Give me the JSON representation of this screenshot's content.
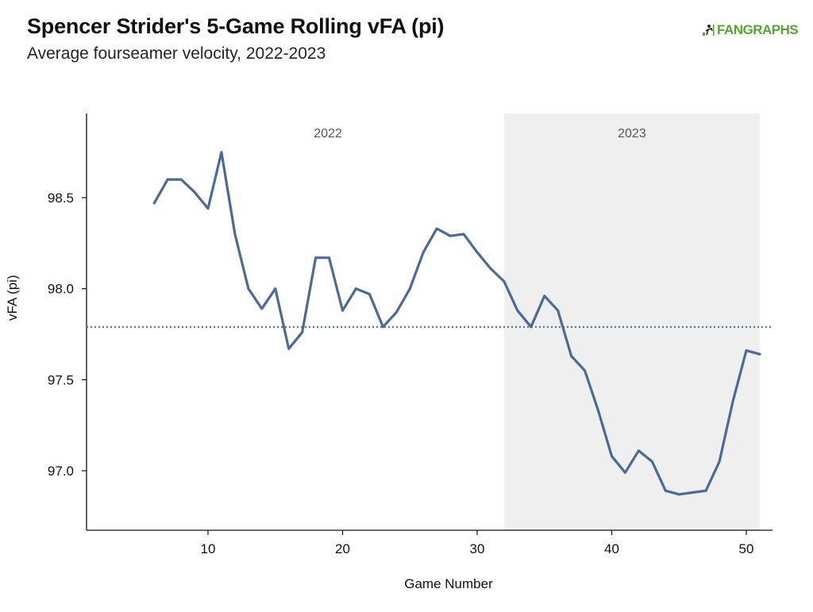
{
  "header": {
    "title": "Spencer Strider's 5-Game Rolling vFA (pi)",
    "subtitle": "Average fourseamer velocity, 2022-2023"
  },
  "logo": {
    "text": "FANGRAPHS",
    "icon": "fangraphs-figure-icon",
    "color": "#55a630"
  },
  "chart_data": {
    "type": "line",
    "title": "Spencer Strider's 5-Game Rolling vFA (pi)",
    "subtitle": "Average fourseamer velocity, 2022-2023",
    "xlabel": "Game Number",
    "ylabel": "vFA (pi)",
    "xlim": [
      1,
      52
    ],
    "ylim": [
      96.75,
      98.97
    ],
    "xticks": [
      10,
      20,
      30,
      40,
      50
    ],
    "yticks": [
      97.0,
      97.5,
      98.0,
      98.5
    ],
    "ytick_labels": [
      "97.0",
      "97.5",
      "98.0",
      "98.5"
    ],
    "grid": false,
    "line_color": "#4a6b96",
    "reference_line": {
      "y": 97.79,
      "style": "dotted",
      "color": "#4a6b96"
    },
    "regions": [
      {
        "label": "2022",
        "x_start": 1,
        "x_end": 32,
        "shaded": false
      },
      {
        "label": "2023",
        "x_start": 32,
        "x_end": 51,
        "shaded": true,
        "color": "#efefef"
      }
    ],
    "series": [
      {
        "x": [
          6,
          7,
          8,
          9,
          10,
          11,
          12,
          13,
          14,
          15,
          16,
          17,
          18,
          19,
          20,
          21,
          22,
          23,
          24,
          25,
          26,
          27,
          28,
          29,
          30,
          31,
          32,
          33,
          34,
          35,
          36,
          37,
          38,
          39,
          40,
          41,
          42,
          43,
          44,
          45,
          46,
          47,
          48,
          49,
          50,
          51
        ],
        "values": [
          98.47,
          98.6,
          98.6,
          98.53,
          98.44,
          98.75,
          98.3,
          98.0,
          97.89,
          98.0,
          97.67,
          97.76,
          98.17,
          98.17,
          97.88,
          98.0,
          97.97,
          97.79,
          97.87,
          98.0,
          98.2,
          98.33,
          98.29,
          98.3,
          98.2,
          98.11,
          98.04,
          97.88,
          97.79,
          97.96,
          97.88,
          97.63,
          97.55,
          97.33,
          97.08,
          96.99,
          97.11,
          97.05,
          96.89,
          96.87,
          96.88,
          96.89,
          97.05,
          97.38,
          97.66,
          97.64
        ]
      }
    ]
  }
}
